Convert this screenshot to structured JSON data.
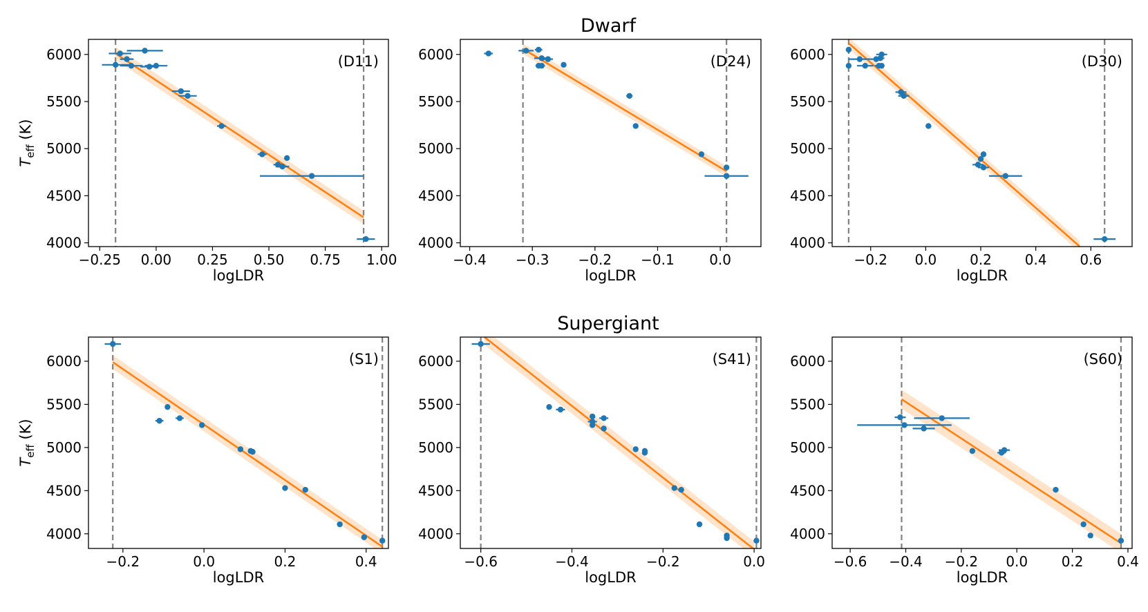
{
  "figure": {
    "group_titles": [
      "Dwarf",
      "Supergiant"
    ],
    "colors": {
      "points": "#1f77b4",
      "fit": "#ff7f0e",
      "band": "#ff7f0e",
      "ref": "#808080",
      "axis": "#000000"
    }
  },
  "chart_data": [
    {
      "type": "scatter",
      "label": "(D11)",
      "xlabel": "logLDR",
      "ylabel": "T_eff (K)",
      "xlim": [
        -0.3,
        1.03
      ],
      "ylim": [
        3960,
        6160
      ],
      "xticks": [
        -0.25,
        0.0,
        0.25,
        0.5,
        0.75,
        1.0
      ],
      "xtick_labels": [
        "−0.25",
        "0.00",
        "0.25",
        "0.50",
        "0.75",
        "1.00"
      ],
      "yticks": [
        4000,
        4500,
        5000,
        5500,
        6000
      ],
      "ref_lines": [
        -0.18,
        0.92
      ],
      "fit": {
        "x": [
          -0.18,
          0.92
        ],
        "y": [
          6010,
          4270
        ],
        "band": 70
      },
      "points": [
        {
          "x": -0.16,
          "y": 6010,
          "xerr": 0.05
        },
        {
          "x": -0.05,
          "y": 6040,
          "xerr": 0.08
        },
        {
          "x": -0.13,
          "y": 5950,
          "xerr": 0.03
        },
        {
          "x": -0.18,
          "y": 5890,
          "xerr": 0.06
        },
        {
          "x": -0.11,
          "y": 5880,
          "xerr": 0.05
        },
        {
          "x": -0.03,
          "y": 5870,
          "xerr": 0.04
        },
        {
          "x": 0.0,
          "y": 5880,
          "xerr": 0.05
        },
        {
          "x": 0.11,
          "y": 5610,
          "xerr": 0.04
        },
        {
          "x": 0.14,
          "y": 5560,
          "xerr": 0.04
        },
        {
          "x": 0.29,
          "y": 5240,
          "xerr": 0.02
        },
        {
          "x": 0.47,
          "y": 4940,
          "xerr": 0.02
        },
        {
          "x": 0.54,
          "y": 4830,
          "xerr": 0.02
        },
        {
          "x": 0.58,
          "y": 4900,
          "xerr": 0.0
        },
        {
          "x": 0.56,
          "y": 4810,
          "xerr": 0.03
        },
        {
          "x": 0.69,
          "y": 4710,
          "xerr": 0.23
        },
        {
          "x": 0.93,
          "y": 4040,
          "xerr": 0.04
        }
      ]
    },
    {
      "type": "scatter",
      "label": "(D24)",
      "xlabel": "logLDR",
      "ylabel": "",
      "xlim": [
        -0.415,
        0.065
      ],
      "ylim": [
        3960,
        6160
      ],
      "xticks": [
        -0.4,
        -0.3,
        -0.2,
        -0.1,
        0.0
      ],
      "xtick_labels": [
        "−0.4",
        "−0.3",
        "−0.2",
        "−0.1",
        "0.0"
      ],
      "yticks": [
        4000,
        4500,
        5000,
        5500,
        6000
      ],
      "ref_lines": [
        -0.315,
        0.01
      ],
      "fit": {
        "x": [
          -0.315,
          0.01
        ],
        "y": [
          6060,
          4760
        ],
        "band": 55
      },
      "points": [
        {
          "x": -0.37,
          "y": 6010,
          "xerr": 0.007
        },
        {
          "x": -0.31,
          "y": 6040,
          "xerr": 0.012
        },
        {
          "x": -0.29,
          "y": 6050,
          "xerr": 0.006
        },
        {
          "x": -0.285,
          "y": 5960,
          "xerr": 0.012
        },
        {
          "x": -0.275,
          "y": 5950,
          "xerr": 0.008
        },
        {
          "x": -0.29,
          "y": 5880,
          "xerr": 0.005
        },
        {
          "x": -0.285,
          "y": 5880,
          "xerr": 0.005
        },
        {
          "x": -0.25,
          "y": 5890,
          "xerr": 0.0
        },
        {
          "x": -0.145,
          "y": 5560,
          "xerr": 0.005
        },
        {
          "x": -0.135,
          "y": 5240,
          "xerr": 0.004
        },
        {
          "x": -0.03,
          "y": 4940,
          "xerr": 0.003
        },
        {
          "x": 0.01,
          "y": 4800,
          "xerr": 0.004
        },
        {
          "x": 0.01,
          "y": 4710,
          "xerr": 0.035
        }
      ]
    },
    {
      "type": "scatter",
      "label": "(D30)",
      "xlabel": "logLDR",
      "ylabel": "",
      "xlim": [
        -0.34,
        0.75
      ],
      "ylim": [
        3960,
        6160
      ],
      "xticks": [
        -0.2,
        0.0,
        0.2,
        0.4,
        0.6
      ],
      "xtick_labels": [
        "−0.2",
        "0.0",
        "0.2",
        "0.4",
        "0.6"
      ],
      "yticks": [
        4000,
        4500,
        5000,
        5500,
        6000
      ],
      "ref_lines": [
        -0.28,
        0.65
      ],
      "fit": {
        "x": [
          -0.28,
          0.56
        ],
        "y": [
          6120,
          3960
        ],
        "band": 60
      },
      "points": [
        {
          "x": -0.28,
          "y": 6050,
          "xerr": 0.01
        },
        {
          "x": -0.28,
          "y": 5880,
          "xerr": 0.0
        },
        {
          "x": -0.24,
          "y": 5950,
          "xerr": 0.04
        },
        {
          "x": -0.22,
          "y": 5880,
          "xerr": 0.03
        },
        {
          "x": -0.18,
          "y": 5950,
          "xerr": 0.02
        },
        {
          "x": -0.16,
          "y": 6000,
          "xerr": 0.02
        },
        {
          "x": -0.165,
          "y": 5960,
          "xerr": 0.015
        },
        {
          "x": -0.17,
          "y": 5880,
          "xerr": 0.015
        },
        {
          "x": -0.16,
          "y": 5880,
          "xerr": 0.01
        },
        {
          "x": -0.09,
          "y": 5600,
          "xerr": 0.02
        },
        {
          "x": -0.08,
          "y": 5560,
          "xerr": 0.02
        },
        {
          "x": 0.01,
          "y": 5240,
          "xerr": 0.01
        },
        {
          "x": 0.21,
          "y": 4940,
          "xerr": 0.01
        },
        {
          "x": 0.2,
          "y": 4890,
          "xerr": 0.0
        },
        {
          "x": 0.19,
          "y": 4830,
          "xerr": 0.02
        },
        {
          "x": 0.21,
          "y": 4800,
          "xerr": 0.02
        },
        {
          "x": 0.29,
          "y": 4710,
          "xerr": 0.06
        },
        {
          "x": 0.65,
          "y": 4040,
          "xerr": 0.04
        }
      ]
    },
    {
      "type": "scatter",
      "label": "(S1)",
      "xlabel": "logLDR",
      "ylabel": "T_eff (K)",
      "xlim": [
        -0.285,
        0.455
      ],
      "ylim": [
        3830,
        6280
      ],
      "xticks": [
        -0.2,
        0.0,
        0.2,
        0.4
      ],
      "xtick_labels": [
        "−0.2",
        "0.0",
        "0.2",
        "0.4"
      ],
      "yticks": [
        4000,
        4500,
        5000,
        5500,
        6000
      ],
      "ref_lines": [
        -0.225,
        0.44
      ],
      "fit": {
        "x": [
          -0.225,
          0.44
        ],
        "y": [
          5990,
          3850
        ],
        "band": 80
      },
      "points": [
        {
          "x": -0.225,
          "y": 6200,
          "xerr": 0.02
        },
        {
          "x": -0.09,
          "y": 5470,
          "xerr": 0.005
        },
        {
          "x": -0.06,
          "y": 5340,
          "xerr": 0.01
        },
        {
          "x": -0.11,
          "y": 5310,
          "xerr": 0.01
        },
        {
          "x": -0.005,
          "y": 5260,
          "xerr": 0.0
        },
        {
          "x": 0.09,
          "y": 4980,
          "xerr": 0.0
        },
        {
          "x": 0.115,
          "y": 4960,
          "xerr": 0.005
        },
        {
          "x": 0.12,
          "y": 4950,
          "xerr": 0.0
        },
        {
          "x": 0.2,
          "y": 4530,
          "xerr": 0.0
        },
        {
          "x": 0.25,
          "y": 4510,
          "xerr": 0.0
        },
        {
          "x": 0.335,
          "y": 4110,
          "xerr": 0.0
        },
        {
          "x": 0.395,
          "y": 3960,
          "xerr": 0.0
        },
        {
          "x": 0.44,
          "y": 3920,
          "xerr": 0.0
        }
      ]
    },
    {
      "type": "scatter",
      "label": "(S41)",
      "xlabel": "logLDR",
      "ylabel": "",
      "xlim": [
        -0.645,
        0.015
      ],
      "ylim": [
        3830,
        6280
      ],
      "xticks": [
        -0.6,
        -0.4,
        -0.2,
        0.0
      ],
      "xtick_labels": [
        "−0.6",
        "−0.4",
        "−0.2",
        "0.0"
      ],
      "yticks": [
        4000,
        4500,
        5000,
        5500,
        6000
      ],
      "ref_lines": [
        -0.6,
        0.005
      ],
      "fit": {
        "x": [
          -0.592,
          0.0
        ],
        "y": [
          6280,
          3820
        ],
        "band": 90
      },
      "points": [
        {
          "x": -0.6,
          "y": 6200,
          "xerr": 0.02
        },
        {
          "x": -0.45,
          "y": 5470,
          "xerr": 0.005
        },
        {
          "x": -0.425,
          "y": 5440,
          "xerr": 0.01
        },
        {
          "x": -0.355,
          "y": 5360,
          "xerr": 0.005
        },
        {
          "x": -0.33,
          "y": 5340,
          "xerr": 0.01
        },
        {
          "x": -0.355,
          "y": 5300,
          "xerr": 0.01
        },
        {
          "x": -0.355,
          "y": 5260,
          "xerr": 0.005
        },
        {
          "x": -0.33,
          "y": 5220,
          "xerr": 0.005
        },
        {
          "x": -0.26,
          "y": 4980,
          "xerr": 0.005
        },
        {
          "x": -0.24,
          "y": 4960,
          "xerr": 0.0
        },
        {
          "x": -0.24,
          "y": 4940,
          "xerr": 0.0
        },
        {
          "x": -0.175,
          "y": 4530,
          "xerr": 0.0
        },
        {
          "x": -0.16,
          "y": 4510,
          "xerr": 0.0
        },
        {
          "x": -0.12,
          "y": 4110,
          "xerr": 0.0
        },
        {
          "x": -0.06,
          "y": 3980,
          "xerr": 0.005
        },
        {
          "x": -0.06,
          "y": 3950,
          "xerr": 0.0
        },
        {
          "x": 0.005,
          "y": 3920,
          "xerr": 0.0
        }
      ]
    },
    {
      "type": "scatter",
      "label": "(S60)",
      "xlabel": "logLDR",
      "ylabel": "",
      "xlim": [
        -0.665,
        0.415
      ],
      "ylim": [
        3830,
        6280
      ],
      "xticks": [
        -0.6,
        -0.4,
        -0.2,
        0.0,
        0.2,
        0.4
      ],
      "xtick_labels": [
        "−0.6",
        "−0.4",
        "−0.2",
        "0.0",
        "0.2",
        "0.4"
      ],
      "yticks": [
        4000,
        4500,
        5000,
        5500,
        6000
      ],
      "ref_lines": [
        -0.415,
        0.375
      ],
      "fit": {
        "x": [
          -0.415,
          0.375
        ],
        "y": [
          5560,
          3890
        ],
        "band": 110
      },
      "points": [
        {
          "x": -0.42,
          "y": 5350,
          "xerr": 0.02
        },
        {
          "x": -0.27,
          "y": 5340,
          "xerr": 0.1
        },
        {
          "x": -0.405,
          "y": 5260,
          "xerr": 0.17
        },
        {
          "x": -0.335,
          "y": 5220,
          "xerr": 0.04
        },
        {
          "x": -0.16,
          "y": 4960,
          "xerr": 0.0
        },
        {
          "x": -0.045,
          "y": 4970,
          "xerr": 0.02
        },
        {
          "x": -0.055,
          "y": 4940,
          "xerr": 0.015
        },
        {
          "x": 0.14,
          "y": 4510,
          "xerr": 0.01
        },
        {
          "x": 0.24,
          "y": 4110,
          "xerr": 0.0
        },
        {
          "x": 0.265,
          "y": 3980,
          "xerr": 0.005
        },
        {
          "x": 0.375,
          "y": 3920,
          "xerr": 0.01
        }
      ]
    }
  ]
}
